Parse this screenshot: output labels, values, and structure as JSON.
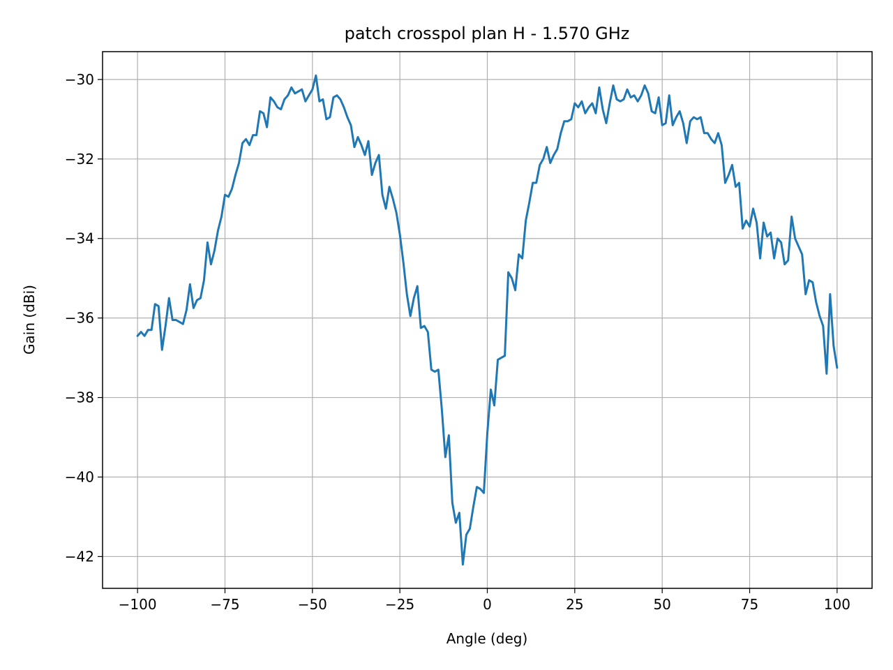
{
  "chart_data": {
    "type": "line",
    "title": "patch crosspol plan H - 1.570 GHz",
    "xlabel": "Angle (deg)",
    "ylabel": "Gain (dBi)",
    "xlim": [
      -110,
      110
    ],
    "ylim": [
      -42.8,
      -29.3
    ],
    "xticks": [
      -100,
      -75,
      -50,
      -25,
      0,
      25,
      50,
      75,
      100
    ],
    "xtick_labels": [
      "−100",
      "−75",
      "−50",
      "−25",
      "0",
      "25",
      "50",
      "75",
      "100"
    ],
    "yticks": [
      -42,
      -40,
      -38,
      -36,
      -34,
      -32,
      -30
    ],
    "ytick_labels": [
      "−42",
      "−40",
      "−38",
      "−36",
      "−34",
      "−32",
      "−30"
    ],
    "grid": true,
    "series": [
      {
        "color": "#1f77b4",
        "x": [
          -100,
          -99,
          -98,
          -97,
          -96,
          -95,
          -94,
          -93,
          -92,
          -91,
          -90,
          -89,
          -88,
          -87,
          -86,
          -85,
          -84,
          -83,
          -82,
          -81,
          -80,
          -79,
          -78,
          -77,
          -76,
          -75,
          -74,
          -73,
          -72,
          -71,
          -70,
          -69,
          -68,
          -67,
          -66,
          -65,
          -64,
          -63,
          -62,
          -61,
          -60,
          -59,
          -58,
          -57,
          -56,
          -55,
          -54,
          -53,
          -52,
          -51,
          -50,
          -49,
          -48,
          -47,
          -46,
          -45,
          -44,
          -43,
          -42,
          -41,
          -40,
          -39,
          -38,
          -37,
          -36,
          -35,
          -34,
          -33,
          -32,
          -31,
          -30,
          -29,
          -28,
          -27,
          -26,
          -25,
          -24,
          -23,
          -22,
          -21,
          -20,
          -19,
          -18,
          -17,
          -16,
          -15,
          -14,
          -13,
          -12,
          -11,
          -10,
          -9,
          -8,
          -7,
          -6,
          -5,
          -4,
          -3,
          -2,
          -1,
          0,
          1,
          2,
          3,
          4,
          5,
          6,
          7,
          8,
          9,
          10,
          11,
          12,
          13,
          14,
          15,
          16,
          17,
          18,
          19,
          20,
          21,
          22,
          23,
          24,
          25,
          26,
          27,
          28,
          29,
          30,
          31,
          32,
          33,
          34,
          35,
          36,
          37,
          38,
          39,
          40,
          41,
          42,
          43,
          44,
          45,
          46,
          47,
          48,
          49,
          50,
          51,
          52,
          53,
          54,
          55,
          56,
          57,
          58,
          59,
          60,
          61,
          62,
          63,
          64,
          65,
          66,
          67,
          68,
          69,
          70,
          71,
          72,
          73,
          74,
          75,
          76,
          77,
          78,
          79,
          80,
          81,
          82,
          83,
          84,
          85,
          86,
          87,
          88,
          89,
          90,
          91,
          92,
          93,
          94,
          95,
          96,
          97,
          98,
          99,
          100
        ],
        "y": [
          -36.45,
          -36.35,
          -36.45,
          -36.3,
          -36.3,
          -35.65,
          -35.7,
          -36.8,
          -36.2,
          -35.5,
          -36.05,
          -36.05,
          -36.1,
          -36.15,
          -35.8,
          -35.15,
          -35.75,
          -35.55,
          -35.5,
          -35.05,
          -34.1,
          -34.65,
          -34.3,
          -33.8,
          -33.45,
          -32.9,
          -32.95,
          -32.75,
          -32.4,
          -32.1,
          -31.6,
          -31.5,
          -31.65,
          -31.4,
          -31.4,
          -30.8,
          -30.85,
          -31.2,
          -30.45,
          -30.55,
          -30.7,
          -30.75,
          -30.5,
          -30.4,
          -30.2,
          -30.35,
          -30.3,
          -30.25,
          -30.55,
          -30.4,
          -30.25,
          -29.9,
          -30.55,
          -30.5,
          -31.0,
          -30.95,
          -30.45,
          -30.4,
          -30.5,
          -30.7,
          -30.95,
          -31.15,
          -31.7,
          -31.45,
          -31.65,
          -31.9,
          -31.55,
          -32.4,
          -32.1,
          -31.9,
          -32.9,
          -33.25,
          -32.7,
          -33.0,
          -33.35,
          -33.9,
          -34.6,
          -35.4,
          -35.95,
          -35.5,
          -35.2,
          -36.25,
          -36.2,
          -36.35,
          -37.3,
          -37.35,
          -37.3,
          -38.3,
          -39.5,
          -38.95,
          -40.65,
          -41.15,
          -40.9,
          -42.2,
          -41.45,
          -41.3,
          -40.75,
          -40.25,
          -40.3,
          -40.4,
          -38.9,
          -37.8,
          -38.2,
          -37.05,
          -37.0,
          -36.95,
          -34.85,
          -35.0,
          -35.3,
          -34.4,
          -34.5,
          -33.55,
          -33.1,
          -32.6,
          -32.6,
          -32.15,
          -32.0,
          -31.7,
          -32.1,
          -31.9,
          -31.75,
          -31.35,
          -31.05,
          -31.05,
          -31.0,
          -30.6,
          -30.7,
          -30.55,
          -30.85,
          -30.7,
          -30.6,
          -30.85,
          -30.2,
          -30.75,
          -31.1,
          -30.6,
          -30.15,
          -30.5,
          -30.55,
          -30.5,
          -30.25,
          -30.45,
          -30.4,
          -30.55,
          -30.4,
          -30.15,
          -30.35,
          -30.8,
          -30.85,
          -30.45,
          -31.15,
          -31.1,
          -30.4,
          -31.15,
          -30.95,
          -30.8,
          -31.1,
          -31.6,
          -31.05,
          -30.95,
          -31.0,
          -30.95,
          -31.35,
          -31.35,
          -31.5,
          -31.6,
          -31.35,
          -31.65,
          -32.6,
          -32.4,
          -32.15,
          -32.7,
          -32.6,
          -33.75,
          -33.55,
          -33.7,
          -33.25,
          -33.6,
          -34.5,
          -33.6,
          -33.95,
          -33.85,
          -34.5,
          -34.0,
          -34.1,
          -34.65,
          -34.55,
          -33.45,
          -34.0,
          -34.2,
          -34.4,
          -35.4,
          -35.05,
          -35.1,
          -35.6,
          -35.95,
          -36.2,
          -37.4,
          -35.4,
          -36.7,
          -37.25
        ]
      }
    ]
  }
}
